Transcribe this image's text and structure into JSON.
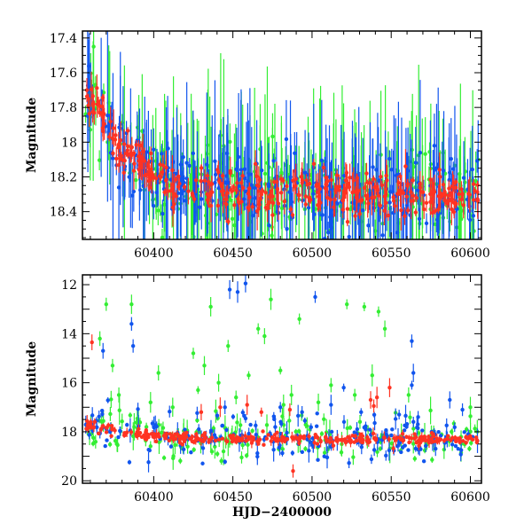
{
  "colors": {
    "green": "#33ee33",
    "blue": "#1155ee",
    "red": "#ff3322"
  },
  "chart_data": [
    {
      "type": "scatter",
      "title": "",
      "xlabel": "",
      "ylabel": "Magnitude",
      "xlim": [
        60355,
        60607
      ],
      "ylim": [
        18.56,
        17.36
      ],
      "y_inverted": true,
      "xticks": [
        60400,
        60450,
        60500,
        60550,
        60600
      ],
      "yticks": [
        17.4,
        17.6,
        17.8,
        18,
        18.2,
        18.4
      ],
      "ytick_labels": [
        "17.4",
        "17.6",
        "17.8",
        "18",
        "18.2",
        "18.4"
      ],
      "grid": false,
      "legend": "none",
      "series": [
        {
          "color_key": "green",
          "trend": [
            [
              60358,
              17.72
            ],
            [
              60380,
              18.05
            ],
            [
              60400,
              18.18
            ],
            [
              60415,
              18.24
            ],
            [
              60450,
              18.28
            ],
            [
              60500,
              18.3
            ],
            [
              60550,
              18.3
            ],
            [
              60605,
              18.32
            ]
          ],
          "scatter_sd": 0.12,
          "err_range": [
            0.05,
            0.6
          ],
          "count": 260
        },
        {
          "color_key": "blue",
          "trend": [
            [
              60358,
              17.72
            ],
            [
              60380,
              18.05
            ],
            [
              60400,
              18.18
            ],
            [
              60415,
              18.24
            ],
            [
              60450,
              18.28
            ],
            [
              60500,
              18.3
            ],
            [
              60550,
              18.3
            ],
            [
              60605,
              18.32
            ]
          ],
          "scatter_sd": 0.1,
          "err_range": [
            0.04,
            0.5
          ],
          "count": 320
        },
        {
          "color_key": "red",
          "trend": [
            [
              60358,
              17.72
            ],
            [
              60380,
              18.05
            ],
            [
              60400,
              18.18
            ],
            [
              60415,
              18.24
            ],
            [
              60450,
              18.28
            ],
            [
              60500,
              18.3
            ],
            [
              60550,
              18.3
            ],
            [
              60605,
              18.32
            ]
          ],
          "scatter_sd": 0.06,
          "err_range": [
            0.02,
            0.12
          ],
          "count": 380
        }
      ]
    },
    {
      "type": "scatter",
      "title": "",
      "xlabel": "HJD−2400000",
      "ylabel": "Magnitude",
      "xlim": [
        60355,
        60607
      ],
      "ylim": [
        20.1,
        11.6
      ],
      "y_inverted": true,
      "xticks": [
        60400,
        60450,
        60500,
        60550,
        60600
      ],
      "yticks": [
        12,
        14,
        16,
        18,
        20
      ],
      "ytick_labels": [
        "12",
        "14",
        "16",
        "18",
        "20"
      ],
      "grid": false,
      "legend": "none",
      "series": [
        {
          "color_key": "green",
          "trend": [
            [
              60358,
              17.72
            ],
            [
              60380,
              18.05
            ],
            [
              60400,
              18.18
            ],
            [
              60415,
              18.24
            ],
            [
              60450,
              18.28
            ],
            [
              60500,
              18.3
            ],
            [
              60550,
              18.3
            ],
            [
              60605,
              18.32
            ]
          ],
          "scatter_sd": 0.5,
          "err_range": [
            0.1,
            0.6
          ],
          "count": 170,
          "outliers": [
            [
              60366,
              14.2
            ],
            [
              60370,
              12.8
            ],
            [
              60374,
              15.3
            ],
            [
              60378,
              16.5
            ],
            [
              60386,
              12.8
            ],
            [
              60398,
              16.8
            ],
            [
              60403,
              15.6
            ],
            [
              60412,
              17.0
            ],
            [
              60425,
              14.8
            ],
            [
              60428,
              16.3
            ],
            [
              60432,
              15.3
            ],
            [
              60436,
              12.9
            ],
            [
              60441,
              16.0
            ],
            [
              60447,
              14.5
            ],
            [
              60452,
              16.6
            ],
            [
              60460,
              15.7
            ],
            [
              60466,
              13.8
            ],
            [
              60470,
              14.1
            ],
            [
              60474,
              12.6
            ],
            [
              60480,
              15.5
            ],
            [
              60482,
              16.9
            ],
            [
              60487,
              16.5
            ],
            [
              60492,
              13.4
            ],
            [
              60504,
              16.8
            ],
            [
              60512,
              16.1
            ],
            [
              60522,
              12.8
            ],
            [
              60527,
              16.5
            ],
            [
              60533,
              12.9
            ],
            [
              60538,
              15.7
            ],
            [
              60542,
              13.1
            ],
            [
              60546,
              13.8
            ],
            [
              60561,
              16.5
            ],
            [
              60600,
              17.0
            ]
          ]
        },
        {
          "color_key": "blue",
          "trend": [
            [
              60358,
              17.72
            ],
            [
              60380,
              18.05
            ],
            [
              60400,
              18.18
            ],
            [
              60415,
              18.24
            ],
            [
              60450,
              18.28
            ],
            [
              60500,
              18.3
            ],
            [
              60550,
              18.3
            ],
            [
              60605,
              18.32
            ]
          ],
          "scatter_sd": 0.45,
          "err_range": [
            0.05,
            0.5
          ],
          "count": 220,
          "outliers": [
            [
              60368,
              14.7
            ],
            [
              60386,
              13.6
            ],
            [
              60387,
              14.5
            ],
            [
              60448,
              12.2
            ],
            [
              60453,
              12.3
            ],
            [
              60458,
              11.95
            ],
            [
              60502,
              12.5
            ],
            [
              60480,
              17.0
            ],
            [
              60520,
              16.2
            ],
            [
              60531,
              17.2
            ],
            [
              60555,
              17.3
            ],
            [
              60563,
              14.3
            ],
            [
              60564,
              15.6
            ],
            [
              60563,
              16.1
            ],
            [
              60567,
              17.4
            ],
            [
              60587,
              16.7
            ],
            [
              60595,
              17.1
            ],
            [
              60512,
              16.9
            ],
            [
              60445,
              17.0
            ]
          ]
        },
        {
          "color_key": "red",
          "trend": [
            [
              60358,
              17.72
            ],
            [
              60380,
              18.05
            ],
            [
              60400,
              18.18
            ],
            [
              60415,
              18.24
            ],
            [
              60450,
              18.28
            ],
            [
              60500,
              18.3
            ],
            [
              60550,
              18.3
            ],
            [
              60605,
              18.32
            ]
          ],
          "scatter_sd": 0.1,
          "err_range": [
            0.03,
            0.25
          ],
          "count": 320,
          "outliers": [
            [
              60361,
              14.35
            ],
            [
              60430,
              17.2
            ],
            [
              60442,
              17.0
            ],
            [
              60459,
              16.9
            ],
            [
              60468,
              17.2
            ],
            [
              60486,
              17.1
            ],
            [
              60488,
              19.6
            ],
            [
              60537,
              16.7
            ],
            [
              60539,
              16.95
            ],
            [
              60541,
              16.6
            ],
            [
              60549,
              16.2
            ]
          ]
        }
      ]
    }
  ]
}
